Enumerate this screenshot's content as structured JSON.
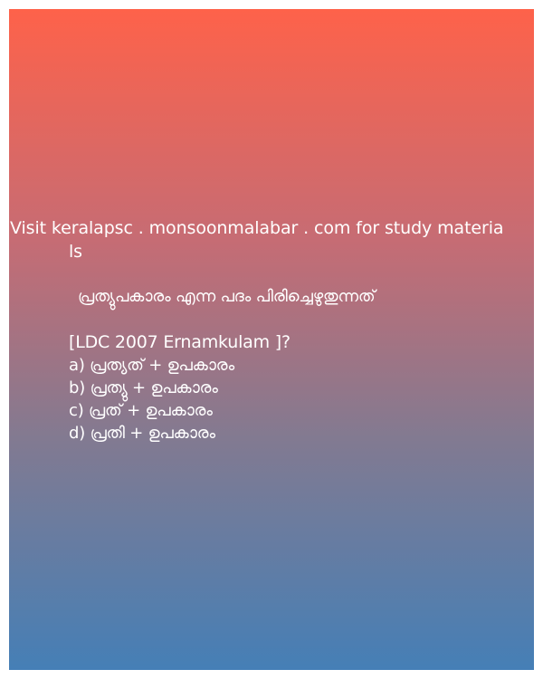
{
  "promo": {
    "line1": "Visit keralapsc . monsoonmalabar . com for study materia",
    "line2": "ls"
  },
  "question": {
    "text": "പ്രത്യുപകാരം എന്ന  പദം പിരിച്ചെഴുതുന്നത്",
    "exam_tag": "[LDC   2007 Ernamkulam ]?"
  },
  "options": [
    "a) പ്രത്യത്  + ഉപകാരം",
    "b) പ്രത്യു  + ഉപകാരം",
    "c) പ്രത്  + ഉപകാരം",
    "d) പ്രതി  + ഉപകാരം"
  ],
  "colors": {
    "gradient_top": "#fe624a",
    "gradient_bottom": "#457fb6",
    "text": "#ffffff"
  }
}
